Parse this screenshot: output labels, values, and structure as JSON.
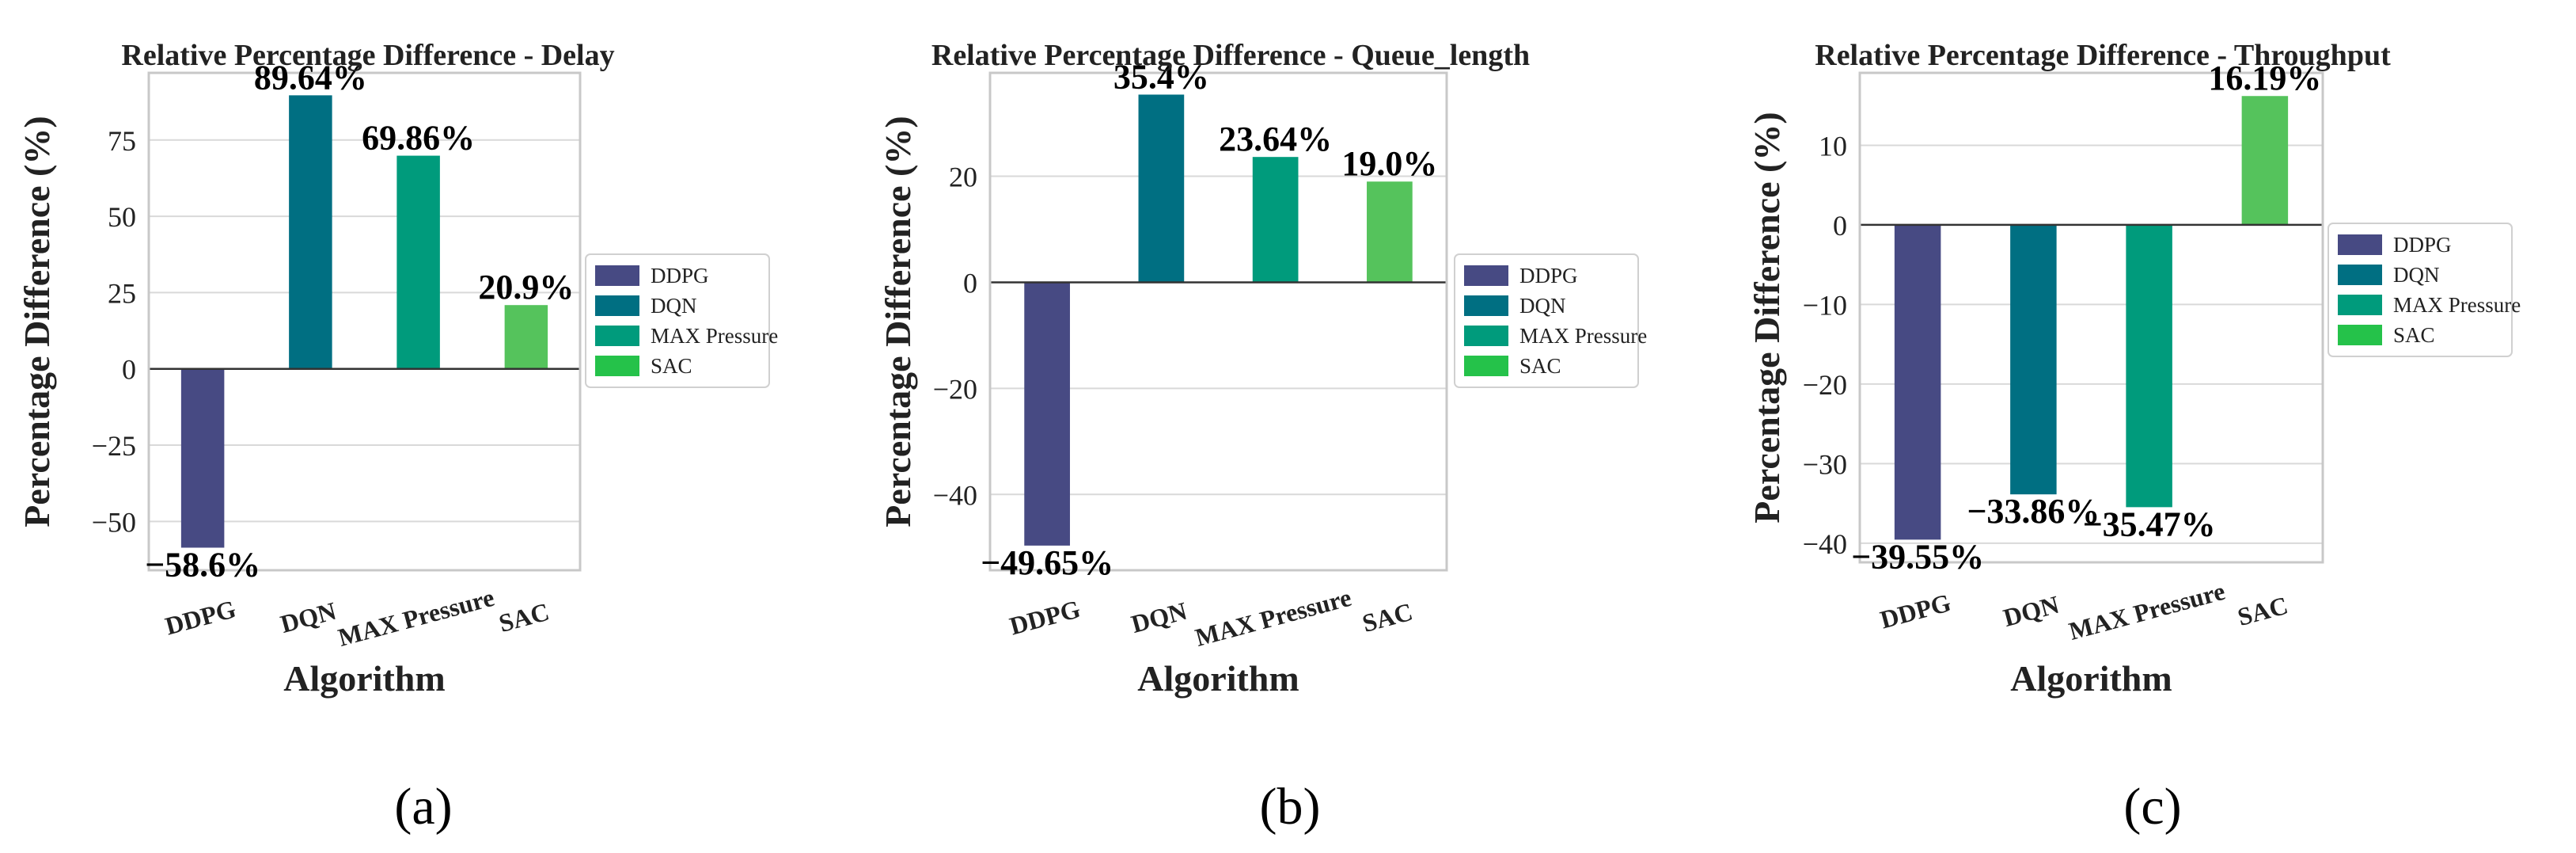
{
  "figure": {
    "legend_position": "right",
    "colors": {
      "DDPG": "#474a83",
      "DQN": "#006f82",
      "MAX Pressure": "#009b7c",
      "SAC": "#55c35c",
      "legend_SAC": "#25c24a",
      "axes_frame": "#c8c8c8",
      "grid": "#d9d9d9",
      "zero_line": "#333333"
    }
  },
  "chart_data": [
    {
      "type": "bar",
      "panel_label": "(a)",
      "title": "Relative Percentage Difference - Delay",
      "xlabel": "Algorithm",
      "ylabel": "Percentage Difference (%)",
      "categories": [
        "DDPG",
        "DQN",
        "MAX Pressure",
        "SAC"
      ],
      "values": [
        -58.6,
        89.64,
        69.86,
        20.9
      ],
      "value_labels": [
        "−58.6%",
        "89.64%",
        "69.86%",
        "20.9%"
      ],
      "ylim": [
        -66,
        97
      ],
      "yticks": [
        -50,
        -25,
        0,
        25,
        50,
        75
      ],
      "ytick_labels": [
        "−50",
        "−25",
        "0",
        "25",
        "50",
        "75"
      ],
      "grid": true,
      "legend": [
        "DDPG",
        "DQN",
        "MAX Pressure",
        "SAC"
      ]
    },
    {
      "type": "bar",
      "panel_label": "(b)",
      "title": "Relative Percentage Difference - Queue_length",
      "xlabel": "Algorithm",
      "ylabel": "Percentage Difference (%)",
      "categories": [
        "DDPG",
        "DQN",
        "MAX Pressure",
        "SAC"
      ],
      "values": [
        -49.65,
        35.4,
        23.64,
        19.0
      ],
      "value_labels": [
        "−49.65%",
        "35.4%",
        "23.64%",
        "19.0%"
      ],
      "ylim": [
        -54.3,
        39.5
      ],
      "yticks": [
        -40,
        -20,
        0,
        20
      ],
      "ytick_labels": [
        "−40",
        "−20",
        "0",
        "20"
      ],
      "grid": true,
      "legend": [
        "DDPG",
        "DQN",
        "MAX Pressure",
        "SAC"
      ]
    },
    {
      "type": "bar",
      "panel_label": "(c)",
      "title": "Relative Percentage Difference - Throughput",
      "xlabel": "Algorithm",
      "ylabel": "Percentage Difference (%)",
      "categories": [
        "DDPG",
        "DQN",
        "MAX Pressure",
        "SAC"
      ],
      "values": [
        -39.55,
        -33.86,
        -35.47,
        16.19
      ],
      "value_labels": [
        "−39.55%",
        "−33.86%",
        "−35.47%",
        "16.19%"
      ],
      "ylim": [
        -42.4,
        19.1
      ],
      "yticks": [
        -40,
        -30,
        -20,
        -10,
        0,
        10
      ],
      "ytick_labels": [
        "−40",
        "−30",
        "−20",
        "−10",
        "0",
        "10"
      ],
      "grid": true,
      "legend": [
        "DDPG",
        "DQN",
        "MAX Pressure",
        "SAC"
      ]
    }
  ]
}
